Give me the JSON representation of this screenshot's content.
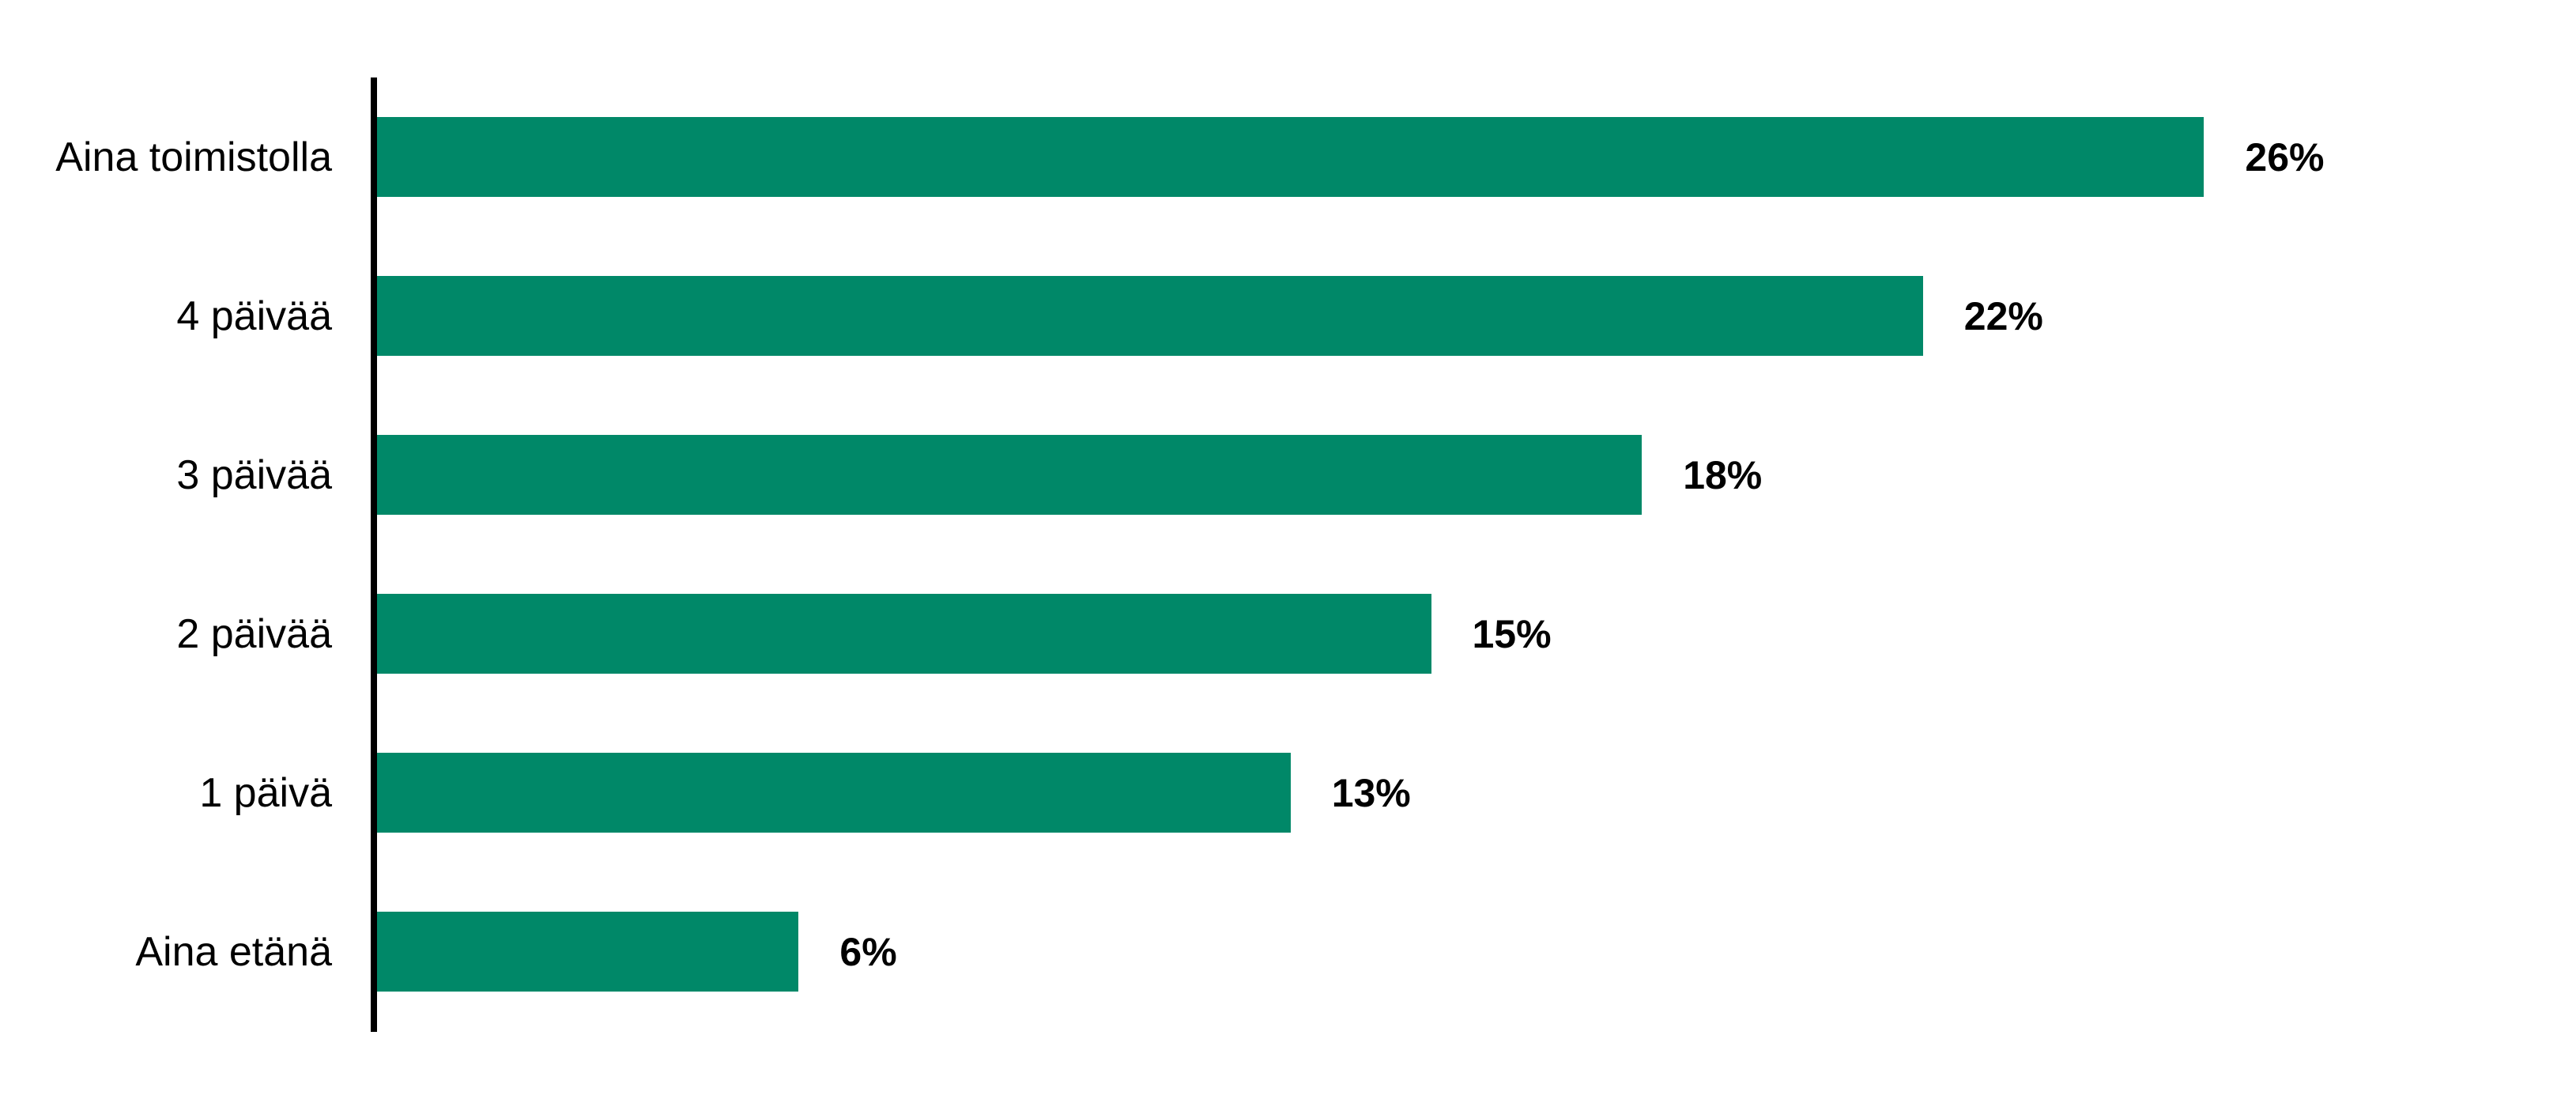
{
  "chart_data": {
    "type": "bar",
    "orientation": "horizontal",
    "categories": [
      "Aina toimistolla",
      "4 päivää",
      "3 päivää",
      "2 päivää",
      "1 päivä",
      "Aina etänä"
    ],
    "values": [
      26,
      22,
      18,
      15,
      13,
      6
    ],
    "value_labels": [
      "26%",
      "22%",
      "18%",
      "15%",
      "13%",
      "6%"
    ],
    "xlim": [
      0,
      26
    ],
    "grid": false,
    "legend": false,
    "bar_color": "#008868",
    "axis_color": "#000000",
    "category_label_color": "#000000",
    "value_label_color": "#000000",
    "background_color": "#ffffff"
  }
}
